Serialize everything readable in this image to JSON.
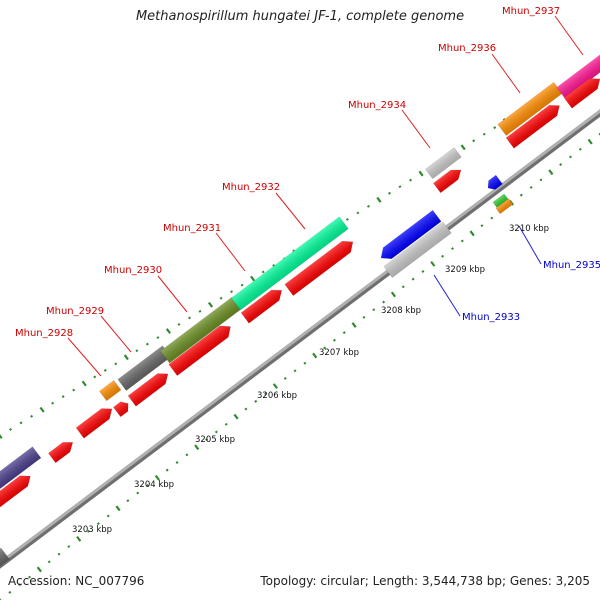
{
  "title": "Methanospirillum hungatei JF-1, complete genome",
  "footer": {
    "accession": "Accession: NC_007796",
    "stats": "Topology: circular; Length: 3,544,738 bp; Genes: 3,205"
  },
  "colors": {
    "backbone": "#8f8f8f",
    "tick": "#2e8b2e",
    "forward_label": "#cc0000",
    "reverse_label": "#0000cc",
    "leader_forward": "#dd2222",
    "leader_reverse": "#2222cc",
    "default_gene": "#ff0000"
  },
  "scale_labels": [
    {
      "text": "3203 kbp",
      "kbp": 3203
    },
    {
      "text": "3204 kbp",
      "kbp": 3204
    },
    {
      "text": "3205 kbp",
      "kbp": 3205
    },
    {
      "text": "3206 kbp",
      "kbp": 3206
    },
    {
      "text": "3207 kbp",
      "kbp": 3207
    },
    {
      "text": "3208 kbp",
      "kbp": 3208
    },
    {
      "text": "3209 kbp",
      "kbp": 3209
    },
    {
      "text": "3210 kbp",
      "kbp": 3210
    }
  ],
  "genes": [
    {
      "label": "Mhun_2928",
      "strand": "forward",
      "color": "#ff8c00"
    },
    {
      "label": "Mhun_2929",
      "strand": "forward",
      "color": "#666666"
    },
    {
      "label": "Mhun_2930",
      "strand": "forward",
      "color": "#6b8e23"
    },
    {
      "label": "Mhun_2931",
      "strand": "forward",
      "color": "#00fa9a"
    },
    {
      "label": "Mhun_2932",
      "strand": "forward",
      "color": "#00fa9a"
    },
    {
      "label": "Mhun_2933",
      "strand": "reverse",
      "color": "#c8c8c8"
    },
    {
      "label": "Mhun_2934",
      "strand": "forward",
      "color": "#c8c8c8"
    },
    {
      "label": "Mhun_2935",
      "strand": "reverse",
      "color": "#0000ff"
    },
    {
      "label": "Mhun_2936",
      "strand": "forward",
      "color": "#ff8c00"
    },
    {
      "label": "Mhun_2937",
      "strand": "forward",
      "color": "#ff1493"
    }
  ]
}
